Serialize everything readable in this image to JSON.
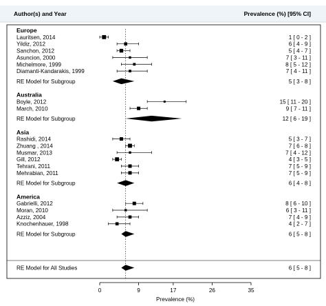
{
  "chart_data": {
    "type": "forest",
    "header": {
      "left": "Author(s) and Year",
      "right": "Prevalence (%) [95% CI]"
    },
    "xlabel": "Prevalence (%)",
    "xlim": [
      0,
      35
    ],
    "ticks": [
      "0",
      "9",
      "17",
      "26",
      "35"
    ],
    "reference_line": 6,
    "groups": [
      {
        "name": "Europe",
        "studies": [
          {
            "label": "Lauritsen, 2014",
            "est": 1,
            "lo": 0,
            "hi": 2,
            "text": "1 [ 0 - 2 ]"
          },
          {
            "label": "Yildiz, 2012",
            "est": 6,
            "lo": 4,
            "hi": 9,
            "text": "6 [ 4 - 9 ]"
          },
          {
            "label": "Sanchon, 2012",
            "est": 5,
            "lo": 4,
            "hi": 7,
            "text": "5 [ 4 - 7 ]"
          },
          {
            "label": "Asuncion, 2000",
            "est": 7,
            "lo": 3,
            "hi": 11,
            "text": "7 [ 3 - 11 ]"
          },
          {
            "label": "Michelmore, 1999",
            "est": 8,
            "lo": 5,
            "hi": 12,
            "text": "8 [ 5 - 12 ]"
          },
          {
            "label": "Diamanti-Kandarakis, 1999",
            "est": 7,
            "lo": 4,
            "hi": 11,
            "text": "7 [ 4 - 11 ]"
          }
        ],
        "summary": {
          "label": "RE Model for Subgroup",
          "est": 5,
          "lo": 3,
          "hi": 8,
          "text": "5 [ 3 - 8 ]"
        }
      },
      {
        "name": "Australia",
        "studies": [
          {
            "label": "Boyle, 2012",
            "est": 15,
            "lo": 11,
            "hi": 20,
            "text": "15 [ 11 - 20 ]"
          },
          {
            "label": "March, 2010",
            "est": 9,
            "lo": 7,
            "hi": 11,
            "text": "9 [ 7 - 11 ]"
          }
        ],
        "summary": {
          "label": "RE Model for Subgroup",
          "est": 12,
          "lo": 6,
          "hi": 19,
          "text": "12 [ 6 - 19 ]"
        }
      },
      {
        "name": "Asia",
        "studies": [
          {
            "label": "Rashidi, 2014",
            "est": 5,
            "lo": 3,
            "hi": 7,
            "text": "5 [ 3 - 7 ]"
          },
          {
            "label": "Zhuang , 2014",
            "est": 7,
            "lo": 6,
            "hi": 8,
            "text": "7 [ 6 - 8 ]"
          },
          {
            "label": "Musmar, 2013",
            "est": 7,
            "lo": 4,
            "hi": 12,
            "text": "7 [ 4 - 12 ]"
          },
          {
            "label": "Gill, 2012",
            "est": 4,
            "lo": 3,
            "hi": 5,
            "text": "4 [ 3 - 5 ]"
          },
          {
            "label": "Tehrani, 2011",
            "est": 7,
            "lo": 5,
            "hi": 9,
            "text": "7 [ 5 - 9 ]"
          },
          {
            "label": "Mehrabian, 2011",
            "est": 7,
            "lo": 5,
            "hi": 9,
            "text": "7 [ 5 - 9 ]"
          }
        ],
        "summary": {
          "label": "RE Model for Subgroup",
          "est": 6,
          "lo": 4,
          "hi": 8,
          "text": "6 [ 4 - 8 ]"
        }
      },
      {
        "name": "America",
        "studies": [
          {
            "label": "Gabrielli, 2012",
            "est": 8,
            "lo": 6,
            "hi": 10,
            "text": "8 [ 6 - 10 ]"
          },
          {
            "label": "Moran, 2010",
            "est": 6,
            "lo": 3,
            "hi": 11,
            "text": "6 [ 3 - 11 ]"
          },
          {
            "label": "Azziz, 2004",
            "est": 7,
            "lo": 4,
            "hi": 9,
            "text": "7 [ 4 - 9 ]"
          },
          {
            "label": "Knochenhauer, 1998",
            "est": 4,
            "lo": 2,
            "hi": 7,
            "text": "4 [ 2 - 7 ]"
          }
        ],
        "summary": {
          "label": "RE Model for Subgroup",
          "est": 6,
          "lo": 5,
          "hi": 8,
          "text": "6 [ 5 - 8 ]"
        }
      }
    ],
    "overall": {
      "label": "RE Model for All Studies",
      "est": 6,
      "lo": 5,
      "hi": 8,
      "text": "6 [ 5 - 8 ]"
    }
  }
}
